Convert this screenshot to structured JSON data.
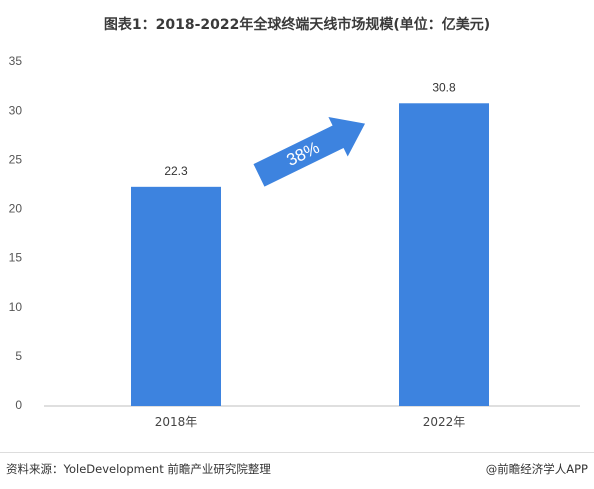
{
  "chart_data": {
    "type": "bar",
    "title": "图表1：2018-2022年全球终端天线市场规模(单位：亿美元)",
    "categories": [
      "2018年",
      "2022年"
    ],
    "values": [
      22.3,
      30.8
    ],
    "data_labels": [
      "22.3",
      "30.8"
    ],
    "yticks": [
      "0",
      "5",
      "10",
      "15",
      "20",
      "25",
      "30",
      "35"
    ],
    "ylim": [
      0,
      35
    ],
    "xlabel": "",
    "ylabel": "",
    "grid": false,
    "annotation": "38%",
    "bar_color": "#3d83df",
    "arrow_color": "#3d83df"
  },
  "footer": {
    "source": "资料来源：YoleDevelopment 前瞻产业研究院整理",
    "brand": "@前瞻经济学人APP"
  }
}
